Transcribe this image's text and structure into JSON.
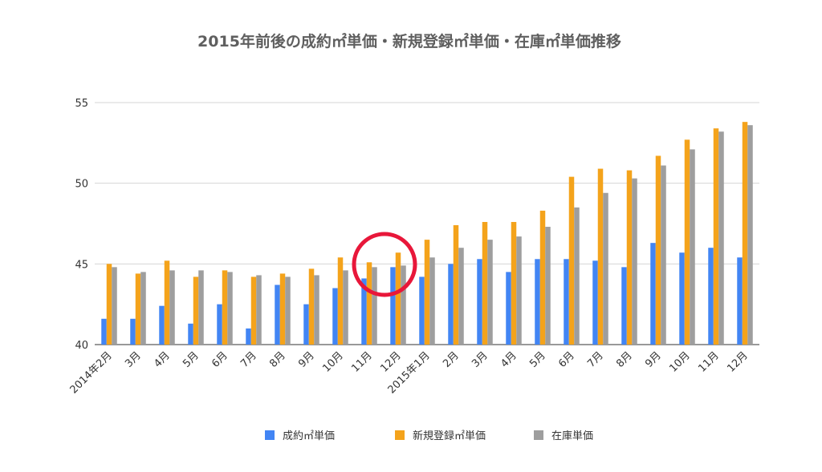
{
  "colors": {
    "series": [
      "#4285f4",
      "#f4a31b",
      "#9e9e9e"
    ],
    "gridline": "#d6d6d6",
    "highlight_circle": "#e8173a"
  },
  "chart_data": {
    "type": "bar",
    "title": "2015年前後の成約㎡単価・新規登録㎡単価・在庫㎡単価推移",
    "xlabel": "",
    "ylabel": "",
    "ylim": [
      40,
      55
    ],
    "yticks": [
      40,
      45,
      50,
      55
    ],
    "grid": true,
    "legend_position": "bottom",
    "categories": [
      "2014年2月",
      "3月",
      "4月",
      "5月",
      "6月",
      "7月",
      "8月",
      "9月",
      "10月",
      "11月",
      "12月",
      "2015年1月",
      "2月",
      "3月",
      "4月",
      "5月",
      "6月",
      "7月",
      "8月",
      "9月",
      "10月",
      "11月",
      "12月"
    ],
    "series": [
      {
        "name": "成約㎡単価",
        "values": [
          41.6,
          41.6,
          42.4,
          41.3,
          42.5,
          41.0,
          43.7,
          42.5,
          43.5,
          44.1,
          44.8,
          44.2,
          45.0,
          45.3,
          44.5,
          45.3,
          45.3,
          45.2,
          44.8,
          46.3,
          45.7,
          46.0,
          45.4
        ]
      },
      {
        "name": "新規登録㎡単価",
        "values": [
          45.0,
          44.4,
          45.2,
          44.2,
          44.6,
          44.2,
          44.4,
          44.7,
          45.4,
          45.1,
          45.7,
          46.5,
          47.4,
          47.6,
          47.6,
          48.3,
          50.4,
          50.9,
          50.8,
          51.7,
          52.7,
          53.4,
          53.8
        ]
      },
      {
        "name": "在庫単価",
        "values": [
          44.8,
          44.5,
          44.6,
          44.6,
          44.5,
          44.3,
          44.2,
          44.3,
          44.6,
          44.8,
          44.9,
          45.4,
          46.0,
          46.5,
          46.7,
          47.3,
          48.5,
          49.4,
          50.3,
          51.1,
          52.1,
          53.2,
          53.6
        ]
      }
    ],
    "annotation": {
      "type": "circle",
      "around_category": "12月",
      "color": "#e8173a"
    }
  }
}
